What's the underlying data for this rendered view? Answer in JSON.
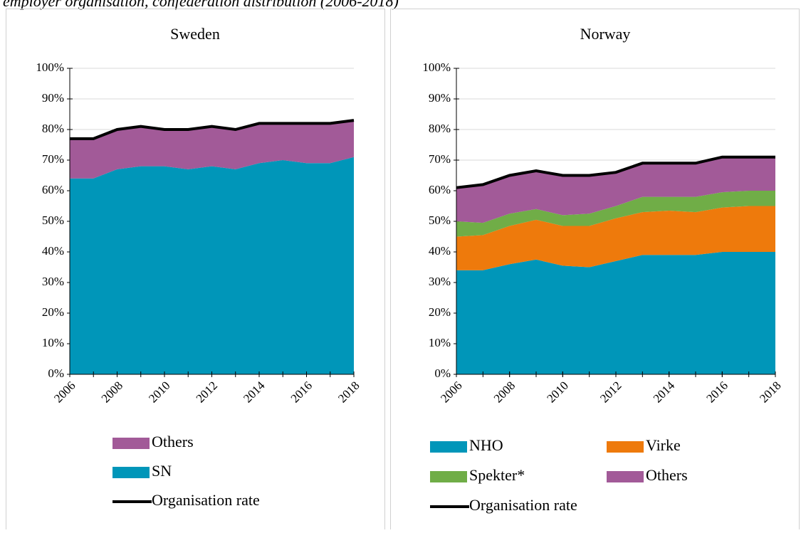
{
  "caption": "employer organisation, confederation distribution (2006-2018)",
  "chart_data": [
    {
      "type": "area",
      "title": "Sweden",
      "x": [
        2006,
        2007,
        2008,
        2009,
        2010,
        2011,
        2012,
        2013,
        2014,
        2015,
        2016,
        2017,
        2018
      ],
      "xlim": [
        2006,
        2018
      ],
      "xticks": [
        2006,
        2008,
        2010,
        2012,
        2014,
        2016,
        2018
      ],
      "ylim": [
        0,
        100
      ],
      "yticks": [
        {
          "value": 0,
          "label": "0%"
        },
        {
          "value": 10,
          "label": "10%"
        },
        {
          "value": 20,
          "label": "20%"
        },
        {
          "value": 30,
          "label": "30%"
        },
        {
          "value": 40,
          "label": "40%"
        },
        {
          "value": 50,
          "label": "50%"
        },
        {
          "value": 60,
          "label": "60%"
        },
        {
          "value": 70,
          "label": "70%"
        },
        {
          "value": 80,
          "label": "80%"
        },
        {
          "value": 90,
          "label": "90%"
        },
        {
          "value": 100,
          "label": "100%"
        }
      ],
      "grid": true,
      "series": [
        {
          "name": "SN",
          "color": "#0096b9",
          "values": [
            64,
            64,
            67,
            68,
            68,
            67,
            68,
            67,
            69,
            70,
            69,
            69,
            71
          ]
        },
        {
          "name": "Others",
          "color": "#a25a98",
          "values": [
            13,
            13,
            13,
            13,
            12,
            13,
            13,
            13,
            13,
            12,
            13,
            13,
            12
          ]
        },
        {
          "name": "Organisation rate",
          "type": "line",
          "color": "#000000",
          "values": [
            77,
            77,
            80,
            81,
            80,
            80,
            81,
            80,
            82,
            82,
            82,
            82,
            83
          ]
        }
      ]
    },
    {
      "type": "area",
      "title": "Norway",
      "x": [
        2006,
        2007,
        2008,
        2009,
        2010,
        2011,
        2012,
        2013,
        2014,
        2015,
        2016,
        2017,
        2018
      ],
      "xlim": [
        2006,
        2018
      ],
      "xticks": [
        2006,
        2008,
        2010,
        2012,
        2014,
        2016,
        2018
      ],
      "ylim": [
        0,
        100
      ],
      "yticks": [
        {
          "value": 0,
          "label": "0%"
        },
        {
          "value": 10,
          "label": "10%"
        },
        {
          "value": 20,
          "label": "20%"
        },
        {
          "value": 30,
          "label": "30%"
        },
        {
          "value": 40,
          "label": "40%"
        },
        {
          "value": 50,
          "label": "50%"
        },
        {
          "value": 60,
          "label": "60%"
        },
        {
          "value": 70,
          "label": "70%"
        },
        {
          "value": 80,
          "label": "80%"
        },
        {
          "value": 90,
          "label": "90%"
        },
        {
          "value": 100,
          "label": "100%"
        }
      ],
      "grid": true,
      "series": [
        {
          "name": "NHO",
          "color": "#0096b9",
          "values": [
            34,
            34,
            36,
            37.5,
            35.5,
            35,
            37,
            39,
            39,
            39,
            40,
            40,
            40
          ]
        },
        {
          "name": "Virke",
          "color": "#ee7a0c",
          "values": [
            11,
            11.5,
            12.5,
            13,
            13,
            13.5,
            14,
            14,
            14.5,
            14,
            14.5,
            15,
            15
          ]
        },
        {
          "name": "Spekter*",
          "color": "#70ad47",
          "values": [
            5,
            4,
            4,
            3.5,
            3.5,
            4,
            4,
            5,
            4.5,
            5,
            5,
            5,
            5
          ]
        },
        {
          "name": "Others",
          "color": "#a25a98",
          "values": [
            11,
            12.5,
            12.5,
            12.5,
            13,
            12.5,
            11,
            11,
            11,
            11,
            11.5,
            11,
            11
          ]
        },
        {
          "name": "Organisation rate",
          "type": "line",
          "color": "#000000",
          "values": [
            61,
            62,
            65,
            66.5,
            65,
            65,
            66,
            69,
            69,
            69,
            71,
            71,
            71
          ]
        }
      ]
    }
  ]
}
